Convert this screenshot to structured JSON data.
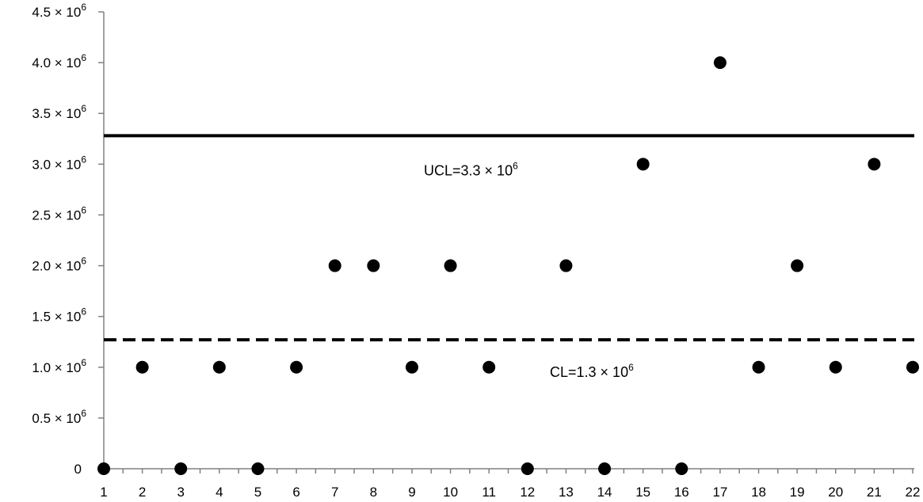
{
  "chart_data": {
    "type": "scatter",
    "x": [
      1,
      2,
      3,
      4,
      5,
      6,
      7,
      8,
      9,
      10,
      11,
      12,
      13,
      14,
      15,
      16,
      17,
      18,
      19,
      20,
      21,
      22
    ],
    "y": [
      0,
      1000000,
      0,
      1000000,
      0,
      1000000,
      2000000,
      2000000,
      1000000,
      2000000,
      1000000,
      0,
      2000000,
      0,
      3000000,
      0,
      4000000,
      1000000,
      2000000,
      1000000,
      3000000,
      1000000
    ],
    "xlim": [
      1,
      22
    ],
    "ylim": [
      0,
      4500000
    ],
    "x_ticks": [
      "1",
      "2",
      "3",
      "4",
      "5",
      "6",
      "7",
      "8",
      "9",
      "10",
      "11",
      "12",
      "13",
      "14",
      "15",
      "16",
      "17",
      "18",
      "19",
      "20",
      "21",
      "22"
    ],
    "y_ticks": [
      {
        "value": 0,
        "mantissa": "0",
        "exponent": ""
      },
      {
        "value": 500000,
        "mantissa": "0.5",
        "exponent": "6"
      },
      {
        "value": 1000000,
        "mantissa": "1.0",
        "exponent": "6"
      },
      {
        "value": 1500000,
        "mantissa": "1.5",
        "exponent": "6"
      },
      {
        "value": 2000000,
        "mantissa": "2.0",
        "exponent": "6"
      },
      {
        "value": 2500000,
        "mantissa": "2.5",
        "exponent": "6"
      },
      {
        "value": 3000000,
        "mantissa": "3.0",
        "exponent": "6"
      },
      {
        "value": 3500000,
        "mantissa": "3.5",
        "exponent": "6"
      },
      {
        "value": 4000000,
        "mantissa": "4.0",
        "exponent": "6"
      },
      {
        "value": 4500000,
        "mantissa": "4.5",
        "exponent": "6"
      }
    ],
    "times_symbol": "×",
    "ten": "10",
    "reference_lines": [
      {
        "name": "UCL",
        "value": 3280000,
        "style": "solid",
        "label_prefix": "UCL=3.3",
        "label_exponent": "6"
      },
      {
        "name": "CL",
        "value": 1270000,
        "style": "dashed",
        "label_prefix": "CL=1.3",
        "label_exponent": "6"
      }
    ],
    "title": "",
    "xlabel": "",
    "ylabel": "",
    "grid": false,
    "marker_color": "#000000"
  }
}
